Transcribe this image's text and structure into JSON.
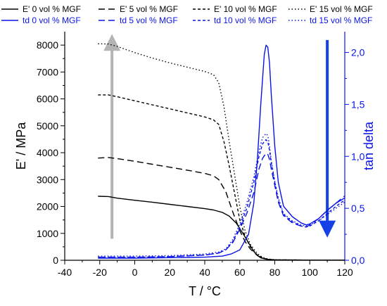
{
  "chart_data": {
    "type": "line",
    "xlabel": "T / °C",
    "ylabel": "E' / MPa",
    "y2label": "tan delta",
    "xlim": [
      -40,
      120
    ],
    "ylim": [
      0,
      8500
    ],
    "y2lim": [
      0,
      2.2
    ],
    "x_ticks": [
      "-40",
      "-20",
      "0",
      "20",
      "40",
      "60",
      "80",
      "100",
      "120"
    ],
    "y_ticks": [
      "0",
      "1000",
      "2000",
      "3000",
      "4000",
      "5000",
      "6000",
      "7000",
      "8000"
    ],
    "y2_ticks": [
      "0,0",
      "0,5",
      "1,0",
      "1,5",
      "2,0"
    ],
    "legend_position": "top",
    "series": [
      {
        "name": "E' 0 vol % MGF",
        "axis": "left",
        "color": "#000000",
        "dash": "solid",
        "x": [
          -21,
          -15,
          -10,
          0,
          10,
          20,
          30,
          40,
          45,
          50,
          54,
          58,
          62,
          65,
          68,
          70,
          72,
          75,
          80,
          90,
          100,
          110,
          120
        ],
        "y": [
          2380,
          2370,
          2310,
          2230,
          2160,
          2080,
          2000,
          1920,
          1870,
          1780,
          1640,
          1380,
          980,
          650,
          330,
          180,
          90,
          40,
          15,
          10,
          8,
          6,
          5
        ]
      },
      {
        "name": "E' 5 vol % MGF",
        "axis": "left",
        "color": "#000000",
        "dash": "long",
        "x": [
          -21,
          -15,
          -10,
          0,
          10,
          20,
          30,
          40,
          45,
          48,
          52,
          56,
          60,
          63,
          66,
          70,
          73,
          76,
          80,
          90,
          100,
          110,
          120
        ],
        "y": [
          3800,
          3820,
          3780,
          3680,
          3570,
          3460,
          3350,
          3230,
          3140,
          3000,
          2550,
          1800,
          1100,
          700,
          420,
          180,
          80,
          35,
          15,
          10,
          8,
          6,
          5
        ]
      },
      {
        "name": "E' 10 vol % MGF",
        "axis": "left",
        "color": "#000000",
        "dash": "short",
        "x": [
          -21,
          -15,
          -10,
          0,
          10,
          20,
          30,
          40,
          45,
          48,
          51,
          54,
          57,
          60,
          63,
          66,
          70,
          73,
          76,
          80,
          90,
          100,
          110,
          120
        ],
        "y": [
          6150,
          6150,
          6080,
          5930,
          5780,
          5630,
          5480,
          5330,
          5220,
          5050,
          4400,
          3500,
          2500,
          1500,
          900,
          500,
          200,
          90,
          40,
          15,
          10,
          8,
          6,
          5
        ]
      },
      {
        "name": "E' 15 vol % MGF",
        "axis": "left",
        "color": "#000000",
        "dash": "dot",
        "x": [
          -21,
          -15,
          -10,
          0,
          10,
          20,
          30,
          40,
          45,
          48,
          51,
          54,
          57,
          60,
          63,
          66,
          70,
          73,
          76,
          80,
          90,
          100,
          110,
          120
        ],
        "y": [
          8050,
          8040,
          7950,
          7720,
          7520,
          7340,
          7180,
          7020,
          6900,
          6600,
          5700,
          4400,
          3200,
          2000,
          1100,
          600,
          250,
          110,
          50,
          20,
          10,
          8,
          6,
          5
        ]
      },
      {
        "name": "td 0 vol % MGF",
        "axis": "right",
        "color": "#0a14e6",
        "dash": "solid",
        "x": [
          -21,
          0,
          20,
          40,
          50,
          55,
          60,
          65,
          68,
          70,
          72,
          74,
          75,
          76,
          77,
          78,
          80,
          82,
          85,
          90,
          95,
          98,
          100,
          105,
          110,
          115,
          120
        ],
        "y": [
          0.02,
          0.02,
          0.025,
          0.03,
          0.04,
          0.06,
          0.1,
          0.25,
          0.55,
          0.95,
          1.5,
          1.98,
          2.07,
          2.05,
          1.9,
          1.6,
          1.1,
          0.75,
          0.52,
          0.42,
          0.36,
          0.34,
          0.35,
          0.4,
          0.48,
          0.55,
          0.6
        ]
      },
      {
        "name": "td 5 vol % MGF",
        "axis": "right",
        "color": "#0a14e6",
        "dash": "long",
        "x": [
          -21,
          0,
          20,
          40,
          48,
          52,
          56,
          60,
          64,
          68,
          71,
          73,
          75,
          76,
          77,
          78,
          80,
          82,
          85,
          90,
          95,
          98,
          100,
          105,
          110,
          115,
          120
        ],
        "y": [
          0.03,
          0.03,
          0.035,
          0.05,
          0.07,
          0.1,
          0.17,
          0.3,
          0.45,
          0.65,
          0.88,
          0.98,
          1.03,
          1.02,
          0.97,
          0.88,
          0.72,
          0.56,
          0.43,
          0.36,
          0.33,
          0.32,
          0.34,
          0.4,
          0.48,
          0.55,
          0.62
        ]
      },
      {
        "name": "td 10 vol % MGF",
        "axis": "right",
        "color": "#0a14e6",
        "dash": "short",
        "x": [
          -21,
          0,
          20,
          40,
          48,
          52,
          56,
          60,
          64,
          68,
          71,
          73,
          75,
          76,
          77,
          78,
          80,
          82,
          85,
          90,
          95,
          98,
          100,
          105,
          110,
          115,
          120
        ],
        "y": [
          0.03,
          0.03,
          0.035,
          0.05,
          0.07,
          0.1,
          0.18,
          0.32,
          0.5,
          0.75,
          1.0,
          1.12,
          1.16,
          1.14,
          1.06,
          0.94,
          0.75,
          0.58,
          0.44,
          0.37,
          0.33,
          0.32,
          0.33,
          0.38,
          0.45,
          0.52,
          0.58
        ]
      },
      {
        "name": "td 15 vol % MGF",
        "axis": "right",
        "color": "#0a14e6",
        "dash": "dot",
        "x": [
          -21,
          0,
          20,
          40,
          48,
          52,
          56,
          60,
          64,
          68,
          71,
          73,
          75,
          76,
          77,
          78,
          80,
          82,
          85,
          90,
          95,
          98,
          100,
          105,
          110,
          115,
          120
        ],
        "y": [
          0.04,
          0.04,
          0.045,
          0.06,
          0.08,
          0.11,
          0.2,
          0.35,
          0.55,
          0.8,
          1.05,
          1.18,
          1.22,
          1.2,
          1.1,
          0.96,
          0.76,
          0.6,
          0.45,
          0.38,
          0.34,
          0.33,
          0.34,
          0.38,
          0.44,
          0.5,
          0.56
        ]
      }
    ],
    "annotations": [
      {
        "kind": "arrow",
        "direction": "up",
        "color": "#b4b4b4",
        "x": -13,
        "axis": "left",
        "from": 800,
        "to": 8100
      },
      {
        "kind": "arrow",
        "direction": "down",
        "color": "#1440e6",
        "x": 110,
        "axis": "right",
        "from": 2.12,
        "to": 0.3
      }
    ]
  }
}
